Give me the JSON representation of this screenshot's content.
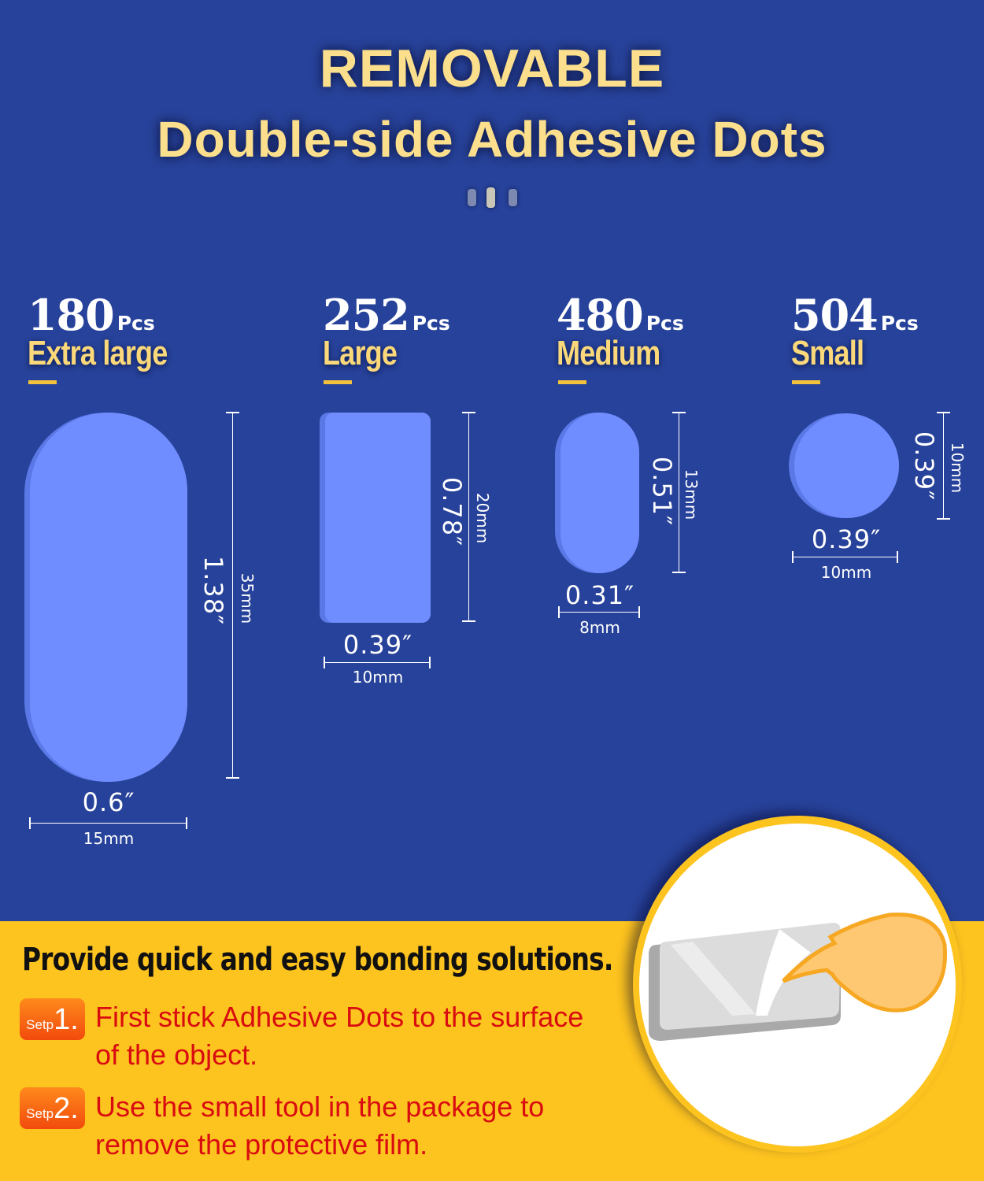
{
  "title": {
    "line1": "REMOVABLE",
    "line2": "Double-side Adhesive Dots"
  },
  "colors": {
    "background": "#27429a",
    "accent_yellow": "#fdc31f",
    "dot_fill": "#6f8dff",
    "step_text": "#d90c10",
    "badge": "#f7641a"
  },
  "sizes": [
    {
      "count": "180",
      "unit": "Pcs",
      "label": "Extra large",
      "shape": "capsule",
      "height_in": "1.38″",
      "height_mm": "35mm",
      "width_in": "0.6″",
      "width_mm": "15mm"
    },
    {
      "count": "252",
      "unit": "Pcs",
      "label": "Large",
      "shape": "rounded-rectangle",
      "height_in": "0.78″",
      "height_mm": "20mm",
      "width_in": "0.39″",
      "width_mm": "10mm"
    },
    {
      "count": "480",
      "unit": "Pcs",
      "label": "Medium",
      "shape": "capsule",
      "height_in": "0.51″",
      "height_mm": "13mm",
      "width_in": "0.31″",
      "width_mm": "8mm"
    },
    {
      "count": "504",
      "unit": "Pcs",
      "label": "Small",
      "shape": "circle",
      "height_in": "0.39″",
      "height_mm": "10mm",
      "width_in": "0.39″",
      "width_mm": "10mm"
    }
  ],
  "instructions": {
    "headline": "Provide quick and easy bonding solutions.",
    "steps": [
      {
        "badge_word": "Setp",
        "badge_num": "1.",
        "line1": "First stick Adhesive Dots to the surface",
        "line2": "of the object."
      },
      {
        "badge_word": "Setp",
        "badge_num": "2.",
        "line1": "Use the small tool in the package to",
        "line2": "remove the protective film."
      }
    ]
  },
  "illustration": {
    "icon": "peeling-adhesive-dot-icon"
  }
}
